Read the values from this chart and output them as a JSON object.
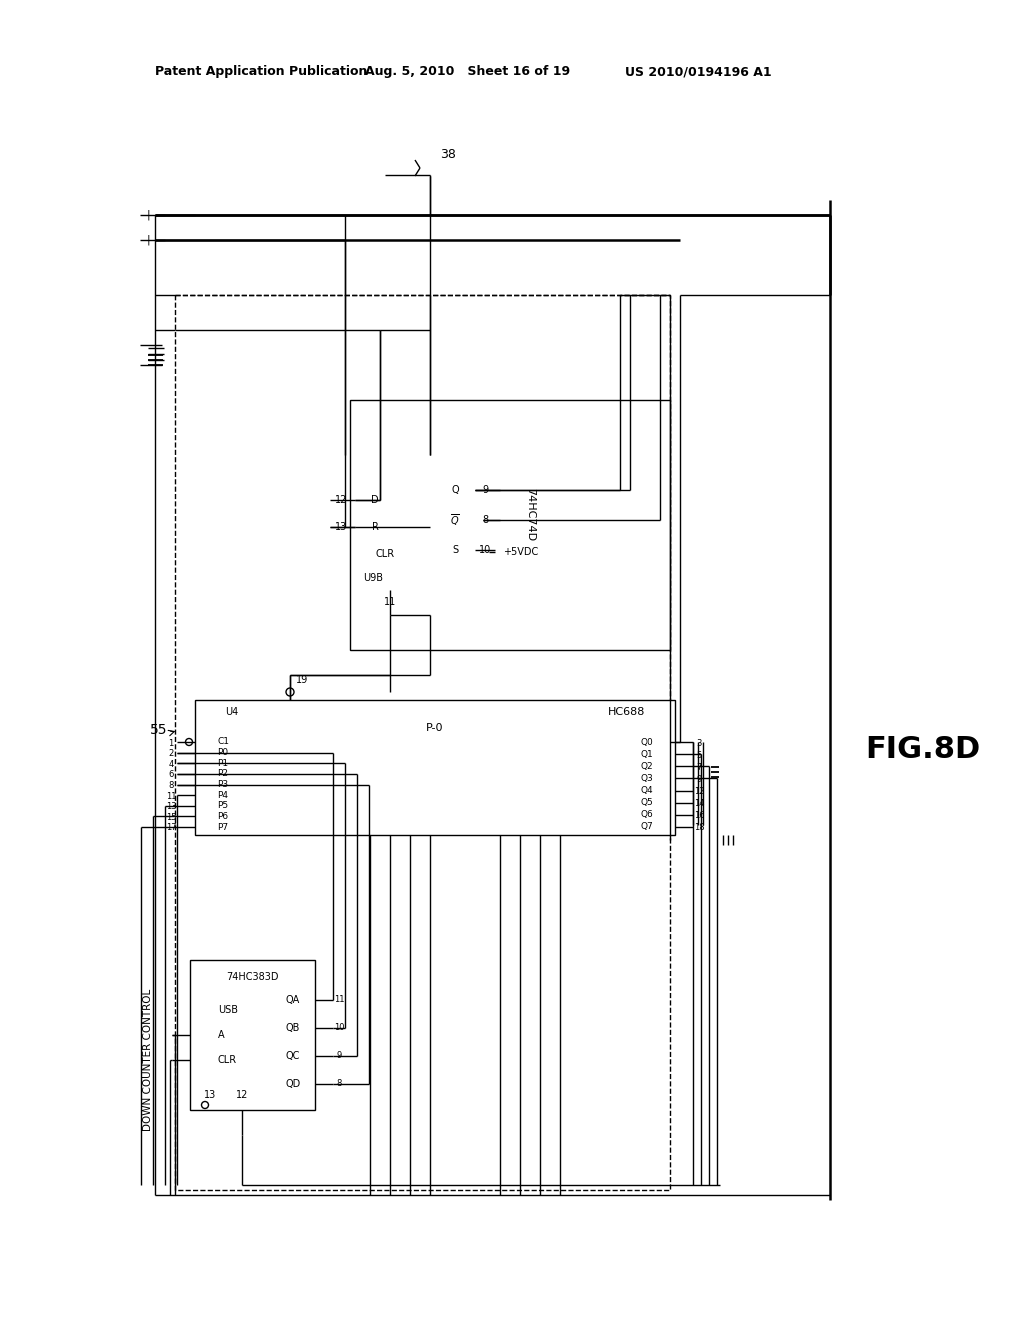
{
  "header_left": "Patent Application Publication",
  "header_center": "Aug. 5, 2010   Sheet 16 of 19",
  "header_right": "US 2010/0194196 A1",
  "fig_label": "FIG.8D",
  "ref_38": "38",
  "ref_55": "55",
  "label_down_counter": "DOWN COUNTER CONTROL",
  "bg": "#ffffff"
}
